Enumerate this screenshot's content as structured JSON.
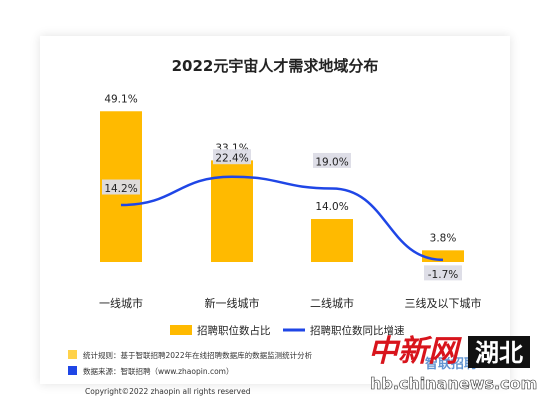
{
  "colors": {
    "bar": "#FFBA00",
    "line": "#1F46E6",
    "label_box": "#DCDCE6",
    "watermark_red": "#D8141C",
    "watermark_blue": "#3B7BC8"
  },
  "chart_data": {
    "type": "bar",
    "title": "2022元宇宙人才需求地域分布",
    "categories": [
      "一线城市",
      "新一线城市",
      "二线城市",
      "三线及以下城市"
    ],
    "series": [
      {
        "name": "招聘职位数占比",
        "kind": "bar",
        "values": [
          49.1,
          33.1,
          14.0,
          3.8
        ],
        "labels": [
          "49.1%",
          "33.1%",
          "14.0%",
          "3.8%"
        ]
      },
      {
        "name": "招聘职位数同比增速",
        "kind": "line",
        "values": [
          14.2,
          22.4,
          19.0,
          -1.7
        ],
        "labels": [
          "14.2%",
          "22.4%",
          "19.0%",
          "-1.7%"
        ]
      }
    ],
    "legend_position": "bottom",
    "grid": false
  },
  "notes": [
    {
      "icon": "yellow-square",
      "text": "统计规则：基于智联招聘2022年在线招聘数据库的数据监测统计分析"
    },
    {
      "icon": "blue-square",
      "text": "数据来源：智联招聘（www.zhaopin.com）"
    }
  ],
  "copyright": "Copyright©2022 zhaopin all rights reserved",
  "watermark": {
    "brand": "中新网",
    "region": "湖北",
    "url": "hb.chinanews.com",
    "logo_text": "智联招聘"
  }
}
